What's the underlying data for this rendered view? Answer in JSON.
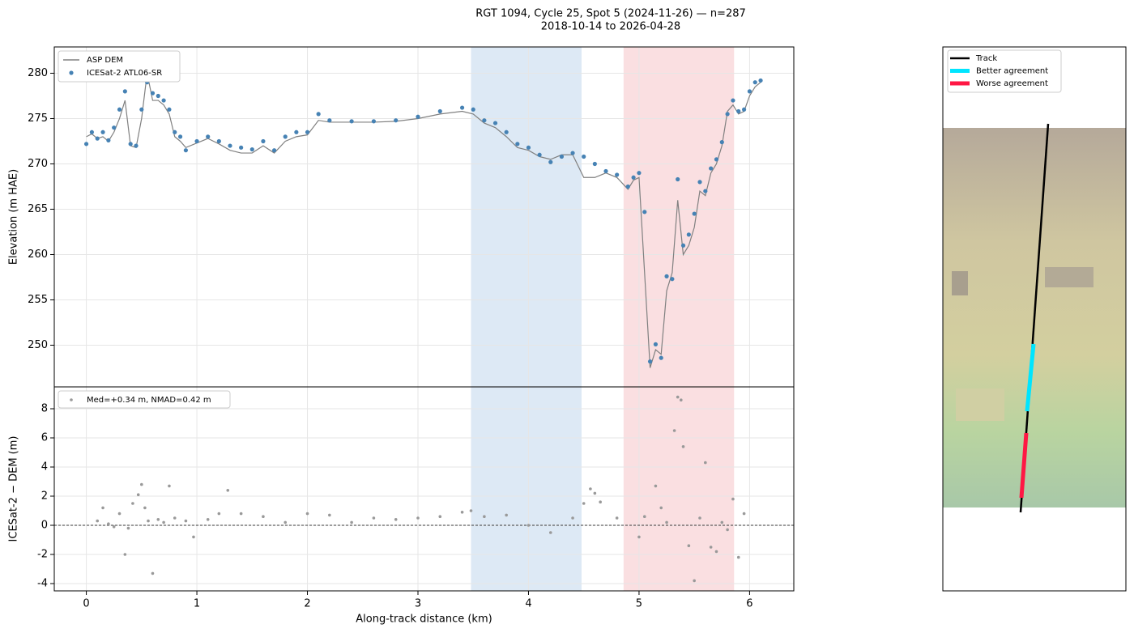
{
  "chart_data": [
    {
      "type": "line",
      "title": "RGT 1094, Cycle 25, Spot 5 (2024-11-26) — n=287",
      "subtitle": "2018-10-14 to 2026-04-28",
      "ylabel": "Elevation (m HAE)",
      "xlim": [
        -0.29,
        6.4
      ],
      "xticks": [
        0,
        1,
        2,
        3,
        4,
        5,
        6
      ],
      "ylim": [
        245.4,
        282.9
      ],
      "yticks": [
        250,
        255,
        260,
        265,
        270,
        275,
        280
      ],
      "grid": true,
      "legend": "upper left",
      "spans": [
        {
          "x": [
            3.48,
            4.48
          ],
          "color": "#c6dbef"
        },
        {
          "x": [
            4.86,
            5.86
          ],
          "color": "#f7c9cd"
        }
      ],
      "x": [
        0,
        0.05,
        0.1,
        0.15,
        0.2,
        0.25,
        0.3,
        0.35,
        0.4,
        0.45,
        0.5,
        0.55,
        0.6,
        0.65,
        0.7,
        0.75,
        0.8,
        0.85,
        0.9,
        1.0,
        1.1,
        1.2,
        1.3,
        1.4,
        1.5,
        1.6,
        1.7,
        1.8,
        1.9,
        2.0,
        2.1,
        2.2,
        2.4,
        2.6,
        2.8,
        3.0,
        3.2,
        3.4,
        3.5,
        3.6,
        3.7,
        3.8,
        3.9,
        4.0,
        4.1,
        4.2,
        4.3,
        4.4,
        4.5,
        4.6,
        4.7,
        4.8,
        4.9,
        4.95,
        5.0,
        5.05,
        5.1,
        5.15,
        5.2,
        5.25,
        5.3,
        5.35,
        5.4,
        5.45,
        5.5,
        5.55,
        5.6,
        5.65,
        5.7,
        5.75,
        5.8,
        5.85,
        5.9,
        5.95,
        6.0,
        6.05,
        6.1
      ],
      "series": [
        {
          "name": "ASP DEM",
          "style": "line",
          "color": "#808080",
          "values": [
            273,
            273.3,
            272.8,
            273,
            272.5,
            273.5,
            275,
            277,
            272,
            271.8,
            275,
            280,
            277,
            277,
            276.5,
            275.5,
            273,
            272.5,
            271.8,
            272.3,
            272.8,
            272.2,
            271.5,
            271.2,
            271.2,
            272,
            271.2,
            272.5,
            273,
            273.2,
            274.8,
            274.6,
            274.6,
            274.6,
            274.7,
            275,
            275.5,
            275.8,
            275.5,
            274.5,
            274,
            273,
            271.8,
            271.5,
            270.8,
            270.5,
            271,
            271,
            268.5,
            268.5,
            269,
            268.5,
            267.2,
            268.2,
            268.5,
            258,
            247.5,
            249.5,
            249,
            256,
            258,
            266,
            260,
            261,
            263,
            267,
            266.5,
            269,
            270,
            272,
            275.8,
            276.5,
            275.5,
            275.8,
            277.5,
            278.5,
            279
          ]
        },
        {
          "name": "ICESat-2 ATL06-SR",
          "style": "marker",
          "color": "#4682b4",
          "values": [
            272.2,
            273.5,
            272.8,
            273.5,
            272.6,
            274,
            276,
            278,
            272.2,
            272,
            276,
            279,
            277.8,
            277.5,
            277,
            276,
            273.5,
            273,
            271.5,
            272.5,
            273,
            272.5,
            272,
            271.8,
            271.6,
            272.5,
            271.5,
            273,
            273.5,
            273.5,
            275.5,
            274.8,
            274.7,
            274.7,
            274.8,
            275.2,
            275.8,
            276.2,
            276,
            274.8,
            274.5,
            273.5,
            272.2,
            271.8,
            271,
            270.2,
            270.8,
            271.2,
            270.8,
            270,
            269.2,
            268.8,
            267.5,
            268.5,
            269,
            264.7,
            248.2,
            250.1,
            248.6,
            257.6,
            257.3,
            268.3,
            261,
            262.2,
            264.5,
            268,
            267,
            269.5,
            270.5,
            272.4,
            275.5,
            277,
            275.8,
            276,
            278,
            279,
            279.2
          ]
        }
      ]
    },
    {
      "type": "scatter",
      "xlabel": "Along-track distance (km)",
      "ylabel": "ICESat-2 − DEM (m)",
      "xlim": [
        -0.29,
        6.4
      ],
      "xticks": [
        0,
        1,
        2,
        3,
        4,
        5,
        6
      ],
      "ylim": [
        -4.5,
        9.5
      ],
      "yticks": [
        -4,
        -2,
        0,
        2,
        4,
        6,
        8
      ],
      "grid": true,
      "legend": "upper left",
      "hline": 0,
      "spans": [
        {
          "x": [
            3.48,
            4.48
          ],
          "color": "#c6dbef"
        },
        {
          "x": [
            4.86,
            5.86
          ],
          "color": "#f7c9cd"
        }
      ],
      "x": [
        0.1,
        0.15,
        0.2,
        0.25,
        0.3,
        0.35,
        0.38,
        0.42,
        0.47,
        0.5,
        0.53,
        0.56,
        0.6,
        0.65,
        0.7,
        0.75,
        0.8,
        0.9,
        0.97,
        1.1,
        1.2,
        1.28,
        1.4,
        1.6,
        1.8,
        2.0,
        2.2,
        2.4,
        2.6,
        2.8,
        3.0,
        3.2,
        3.4,
        3.48,
        3.6,
        3.8,
        4.0,
        4.2,
        4.4,
        4.5,
        4.56,
        4.6,
        4.65,
        4.8,
        5.0,
        5.05,
        5.15,
        5.2,
        5.25,
        5.32,
        5.35,
        5.38,
        5.4,
        5.45,
        5.5,
        5.55,
        5.6,
        5.65,
        5.7,
        5.75,
        5.8,
        5.85,
        5.9,
        5.95
      ],
      "series": [
        {
          "name": "Med=+0.34 m, NMAD=0.42 m",
          "style": "marker",
          "color": "#999999",
          "values": [
            0.3,
            1.2,
            0.1,
            -0.1,
            0.8,
            -2.0,
            -0.2,
            1.5,
            2.1,
            2.8,
            1.2,
            0.3,
            -3.3,
            0.4,
            0.2,
            2.7,
            0.5,
            0.3,
            -0.8,
            0.4,
            0.8,
            2.4,
            0.8,
            0.6,
            0.2,
            0.8,
            0.7,
            0.2,
            0.5,
            0.4,
            0.5,
            0.6,
            0.9,
            1.0,
            0.6,
            0.7,
            0.0,
            -0.5,
            0.5,
            1.5,
            2.5,
            2.2,
            1.6,
            0.5,
            -0.8,
            0.6,
            2.7,
            1.2,
            0.2,
            6.5,
            8.8,
            8.6,
            5.4,
            -1.4,
            -3.8,
            0.5,
            4.3,
            -1.5,
            -1.8,
            0.2,
            -0.3,
            1.8,
            -2.2,
            0.8
          ]
        }
      ]
    },
    {
      "type": "map",
      "legend": "upper left",
      "series": [
        {
          "name": "Track",
          "color": "#000000"
        },
        {
          "name": "Better agreement",
          "color": "#00e5ff"
        },
        {
          "name": "Worse agreement",
          "color": "#ff1744"
        }
      ]
    }
  ]
}
